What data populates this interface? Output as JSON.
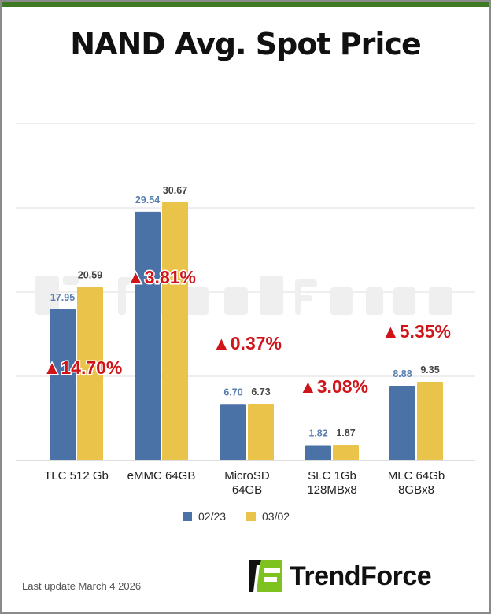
{
  "chart_data": {
    "type": "bar",
    "title": "NAND Avg. Spot Price",
    "categories": [
      [
        "TLC 512 Gb"
      ],
      [
        "eMMC 64GB"
      ],
      [
        "MicroSD",
        "64GB"
      ],
      [
        "SLC 1Gb",
        "128MBx8"
      ],
      [
        "MLC 64Gb",
        "8GBx8"
      ]
    ],
    "series": [
      {
        "name": "02/23",
        "color": "#4a72a6",
        "label_color": "#5a7fae",
        "values": [
          17.95,
          29.54,
          6.7,
          1.82,
          8.88
        ],
        "labels": [
          "17.95",
          "29.54",
          "6.70",
          "1.82",
          "8.88"
        ]
      },
      {
        "name": "03/02",
        "color": "#eac44a",
        "label_color": "#444444",
        "values": [
          20.59,
          30.67,
          6.73,
          1.87,
          9.35
        ],
        "labels": [
          "20.59",
          "30.67",
          "6.73",
          "1.87",
          "9.35"
        ]
      }
    ],
    "changes": [
      "▲14.70%",
      "▲3.81%",
      "▲0.37%",
      "▲3.08%",
      "▲5.35%"
    ],
    "change_color": "#d0141a",
    "ylim": [
      0,
      40
    ],
    "gridlines": [
      0,
      10,
      20,
      30,
      40
    ],
    "grid": true,
    "legend": "bottom-center",
    "xlabel": "",
    "ylabel": ""
  },
  "watermark": "TrendForce",
  "footer": {
    "last_update": "Last update March 4  2026"
  },
  "logo": {
    "text": "TrendForce",
    "accent": "#7dc21e"
  }
}
